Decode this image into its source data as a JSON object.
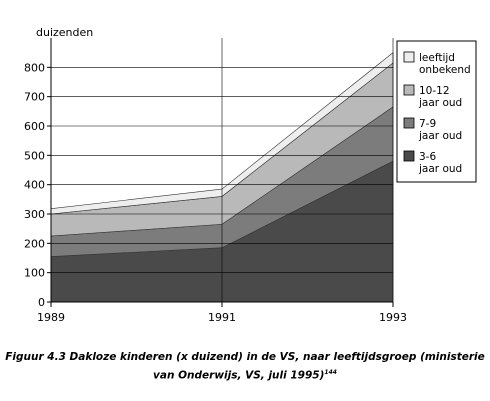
{
  "chart_data": {
    "type": "area",
    "stacked": true,
    "ylabel": "duizenden",
    "x": [
      "1989",
      "1991",
      "1993"
    ],
    "ylim": [
      0,
      900
    ],
    "yticks": [
      0,
      100,
      200,
      300,
      400,
      500,
      600,
      700,
      800
    ],
    "grid": "horizontal and vertical",
    "legend_position": "right",
    "series": [
      {
        "name": "3-6 jaar oud",
        "lines": [
          "3-6",
          "jaar oud"
        ],
        "color": "#4a4a4a",
        "values": [
          155,
          185,
          480
        ]
      },
      {
        "name": "7-9 jaar oud",
        "lines": [
          "7-9",
          "jaar oud"
        ],
        "color": "#7c7c7c",
        "values": [
          70,
          80,
          185
        ]
      },
      {
        "name": "10-12 jaar oud",
        "lines": [
          "10-12",
          "jaar oud"
        ],
        "color": "#b9b9b9",
        "values": [
          75,
          95,
          150
        ]
      },
      {
        "name": "leeftijd onbekend",
        "lines": [
          "leeftijd",
          "onbekend"
        ],
        "color": "#eeeeee",
        "values": [
          18,
          25,
          35
        ]
      }
    ]
  },
  "caption": {
    "text": "Figuur 4.3 Dakloze kinderen (x duizend) in de VS, naar leeftijdsgroep (ministerie van Onderwijs, VS, juli 1995)",
    "line1": "Figuur 4.3 Dakloze kinderen (x duizend) in de VS, naar leeftijdsgroep (ministerie",
    "line2": "van Onderwijs, VS, juli 1995)",
    "footnote": "144"
  }
}
